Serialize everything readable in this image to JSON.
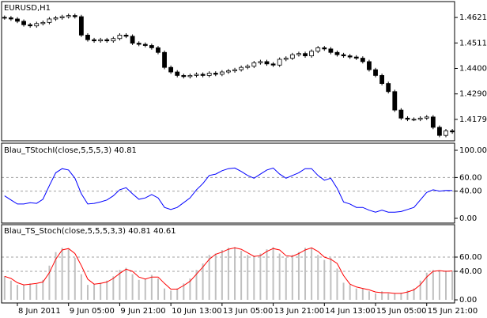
{
  "chart_data": [
    {
      "type": "candlestick",
      "title": "EURUSD,H1",
      "categories": [
        null,
        null,
        "8 Jun 2011",
        null,
        null,
        null,
        null,
        null,
        null,
        null,
        "9 Jun 05:00",
        null,
        null,
        null,
        null,
        null,
        null,
        null,
        "9 Jun 21:00",
        null,
        null,
        null,
        null,
        null,
        null,
        null,
        "10 Jun 13:00",
        null,
        null,
        null,
        null,
        null,
        null,
        null,
        "13 Jun 05:00",
        null,
        null,
        null,
        null,
        null,
        null,
        null,
        "13 Jun 21:00",
        null,
        null,
        null,
        null,
        null,
        null,
        null,
        "14 Jun 13:00",
        null,
        null,
        null,
        null,
        null,
        null,
        null,
        "15 Jun 05:00",
        null,
        null,
        null,
        null,
        null,
        null,
        null,
        "15 Jun 21:00",
        null,
        null,
        null,
        null
      ],
      "open": [
        1.4622,
        1.462,
        1.4615,
        1.4605,
        1.459,
        1.4585,
        1.4595,
        1.46,
        1.4615,
        1.462,
        1.4625,
        1.463,
        1.4625,
        1.4545,
        1.4525,
        1.452,
        1.4525,
        1.452,
        1.453,
        1.4545,
        1.454,
        1.451,
        1.4505,
        1.45,
        1.449,
        1.447,
        1.4405,
        1.4385,
        1.437,
        1.4365,
        1.437,
        1.4375,
        1.437,
        1.438,
        1.4375,
        1.4385,
        1.439,
        1.4395,
        1.4405,
        1.441,
        1.4425,
        1.443,
        1.442,
        1.4415,
        1.444,
        1.4445,
        1.446,
        1.4465,
        1.4455,
        1.4475,
        1.449,
        1.4485,
        1.447,
        1.446,
        1.4455,
        1.445,
        1.4445,
        1.443,
        1.4395,
        1.437,
        1.4335,
        1.43,
        1.422,
        1.4185,
        1.418,
        1.418,
        1.4185,
        1.419,
        1.4145,
        1.411,
        1.413
      ],
      "high": [
        1.463,
        1.4628,
        1.4623,
        1.4613,
        1.4598,
        1.4603,
        1.4608,
        1.4623,
        1.4628,
        1.4633,
        1.4638,
        1.4638,
        1.4633,
        1.4553,
        1.4533,
        1.4533,
        1.4533,
        1.4538,
        1.4553,
        1.4553,
        1.4548,
        1.4518,
        1.4513,
        1.4508,
        1.4498,
        1.4478,
        1.4413,
        1.4393,
        1.4378,
        1.4378,
        1.4383,
        1.4383,
        1.4388,
        1.4388,
        1.4393,
        1.4398,
        1.4403,
        1.4413,
        1.4418,
        1.4433,
        1.4438,
        1.4438,
        1.4428,
        1.4448,
        1.4453,
        1.4468,
        1.4473,
        1.4473,
        1.4483,
        1.4498,
        1.4498,
        1.4493,
        1.4478,
        1.4468,
        1.4463,
        1.4458,
        1.4453,
        1.4438,
        1.4403,
        1.4378,
        1.4343,
        1.4308,
        1.4228,
        1.4193,
        1.4188,
        1.4193,
        1.4198,
        1.4198,
        1.4153,
        1.4138,
        1.4138
      ],
      "low": [
        1.4612,
        1.4607,
        1.4597,
        1.4582,
        1.4577,
        1.4577,
        1.4587,
        1.4592,
        1.4607,
        1.4612,
        1.4617,
        1.4617,
        1.4537,
        1.4517,
        1.4512,
        1.4512,
        1.4512,
        1.4512,
        1.4522,
        1.4532,
        1.4502,
        1.4497,
        1.4492,
        1.4482,
        1.4462,
        1.4397,
        1.4377,
        1.4362,
        1.4357,
        1.4357,
        1.4362,
        1.4362,
        1.4362,
        1.4367,
        1.4367,
        1.4377,
        1.4382,
        1.4387,
        1.4397,
        1.4402,
        1.4417,
        1.4412,
        1.4407,
        1.4407,
        1.4432,
        1.4437,
        1.4452,
        1.4447,
        1.4447,
        1.4467,
        1.4477,
        1.4462,
        1.4452,
        1.4447,
        1.4442,
        1.4437,
        1.4422,
        1.4387,
        1.4362,
        1.4327,
        1.4292,
        1.4212,
        1.4177,
        1.4172,
        1.4172,
        1.4172,
        1.4177,
        1.4137,
        1.4102,
        1.4102,
        1.4117
      ],
      "close": [
        1.462,
        1.4615,
        1.4605,
        1.459,
        1.4585,
        1.4595,
        1.46,
        1.4615,
        1.462,
        1.4625,
        1.463,
        1.4625,
        1.4545,
        1.4525,
        1.452,
        1.4525,
        1.452,
        1.453,
        1.4545,
        1.454,
        1.451,
        1.4505,
        1.45,
        1.449,
        1.447,
        1.4405,
        1.4385,
        1.437,
        1.4365,
        1.437,
        1.4375,
        1.437,
        1.438,
        1.4375,
        1.4385,
        1.439,
        1.4395,
        1.4405,
        1.441,
        1.4425,
        1.443,
        1.442,
        1.4415,
        1.444,
        1.4445,
        1.446,
        1.4465,
        1.4455,
        1.4475,
        1.449,
        1.4485,
        1.447,
        1.446,
        1.4455,
        1.445,
        1.4445,
        1.443,
        1.4395,
        1.437,
        1.4335,
        1.43,
        1.422,
        1.4185,
        1.418,
        1.418,
        1.4185,
        1.419,
        1.4145,
        1.411,
        1.413,
        1.4125
      ],
      "up_color": "#ffffff",
      "down_color": "#000000",
      "color": "#000000",
      "ylim": [
        1.409,
        1.4687
      ],
      "yticks": [
        1.46215,
        {
          "value": 1.4511,
          "label": "1.45110"
        },
        1.44005,
        {
          "value": 1.429,
          "label": "1.42900"
        },
        1.41795
      ]
    },
    {
      "type": "line",
      "title": "Blau_TStochI(close,5,5,5,3) 40.81",
      "color": "#0000ff",
      "values": [
        33,
        27,
        21,
        21,
        23,
        22,
        28,
        48,
        67,
        73,
        71,
        59,
        36,
        21,
        22,
        24,
        27,
        33,
        42,
        45,
        36,
        28,
        30,
        35,
        30,
        16,
        13,
        16,
        23,
        30,
        42,
        51,
        63,
        65,
        70,
        73,
        74,
        69,
        63,
        59,
        65,
        71,
        74,
        65,
        59,
        63,
        67,
        73,
        73,
        63,
        56,
        59,
        44,
        24,
        21,
        16,
        16,
        12,
        9,
        12,
        9,
        9,
        10,
        13,
        16,
        27,
        38,
        42,
        40,
        41,
        40.81
      ],
      "ylim": [
        -7,
        109.3
      ],
      "yticks": [
        {
          "value": 0,
          "label": "0.00"
        },
        {
          "value": 40,
          "label": "40.00"
        },
        {
          "value": 60,
          "label": "60.00"
        },
        {
          "value": 100,
          "label": "100.00"
        }
      ],
      "levels": [
        40,
        60
      ]
    },
    {
      "type": "combo",
      "title": "Blau_TS_Stoch(close,5,5,5,3,3) 40.81 40.61",
      "series": [
        {
          "type": "bar",
          "color": "#c0c0c0",
          "values": [
            33,
            27,
            21,
            21,
            23,
            22,
            28,
            48,
            67,
            73,
            71,
            59,
            36,
            21,
            22,
            24,
            27,
            33,
            42,
            45,
            36,
            28,
            30,
            35,
            30,
            16,
            13,
            16,
            23,
            30,
            42,
            51,
            63,
            65,
            70,
            73,
            74,
            69,
            63,
            59,
            65,
            71,
            74,
            65,
            59,
            63,
            67,
            73,
            73,
            63,
            56,
            59,
            44,
            24,
            21,
            16,
            16,
            12,
            9,
            12,
            9,
            9,
            10,
            13,
            16,
            27,
            38,
            42,
            40,
            41,
            40.81
          ]
        },
        {
          "type": "line",
          "color": "#ff0000",
          "values": [
            33,
            30,
            24,
            21,
            22,
            23,
            25,
            38,
            57,
            70,
            72,
            65,
            48,
            29,
            22,
            23,
            25,
            30,
            37,
            43,
            40,
            32,
            29,
            32,
            32,
            23,
            15,
            15,
            20,
            26,
            36,
            46,
            57,
            64,
            67,
            71,
            73,
            71,
            66,
            61,
            62,
            68,
            72,
            70,
            62,
            61,
            65,
            70,
            73,
            68,
            60,
            57,
            51,
            34,
            22,
            18,
            16,
            14,
            11,
            10,
            10,
            9,
            9,
            11,
            14,
            21,
            32,
            40,
            41,
            40,
            40.61
          ]
        }
      ],
      "ylim": [
        -4.4,
        104.4
      ],
      "yticks": [
        {
          "value": 0,
          "label": "0.00"
        },
        {
          "value": 40,
          "label": "40.00"
        },
        {
          "value": 60,
          "label": "60.00"
        }
      ],
      "levels": [
        40,
        60
      ]
    }
  ]
}
